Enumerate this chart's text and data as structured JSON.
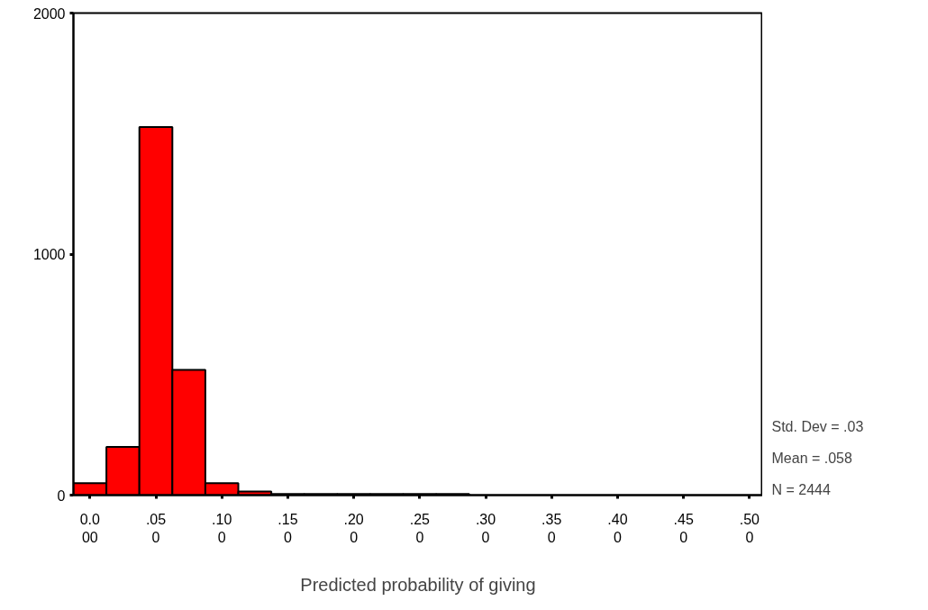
{
  "chart_data": {
    "type": "histogram",
    "xlabel": "Predicted probability of giving",
    "bins": [
      -0.0125,
      0.0125,
      0.0375,
      0.0625,
      0.0875,
      0.1125,
      0.1375,
      0.1625,
      0.1875,
      0.2125,
      0.2375,
      0.2625,
      0.2875
    ],
    "values": [
      50,
      200,
      1527,
      520,
      50,
      15,
      5,
      5,
      5,
      5,
      5,
      5
    ],
    "color": "#ff0000",
    "xlim": [
      -0.0125,
      0.51
    ],
    "ylim": [
      0,
      2000
    ],
    "xticks": [
      {
        "value": 0,
        "label": "0.000"
      },
      {
        "value": 0.05,
        "label": ".050"
      },
      {
        "value": 0.1,
        "label": ".100"
      },
      {
        "value": 0.15,
        "label": ".150"
      },
      {
        "value": 0.2,
        "label": ".200"
      },
      {
        "value": 0.25,
        "label": ".250"
      },
      {
        "value": 0.3,
        "label": ".300"
      },
      {
        "value": 0.35,
        "label": ".350"
      },
      {
        "value": 0.4,
        "label": ".400"
      },
      {
        "value": 0.45,
        "label": ".450"
      },
      {
        "value": 0.5,
        "label": ".500"
      }
    ],
    "yticks": [
      0,
      1000,
      2000
    ],
    "annotations": [
      "Std. Dev = .03",
      "Mean = .058",
      "N = 2444"
    ]
  }
}
